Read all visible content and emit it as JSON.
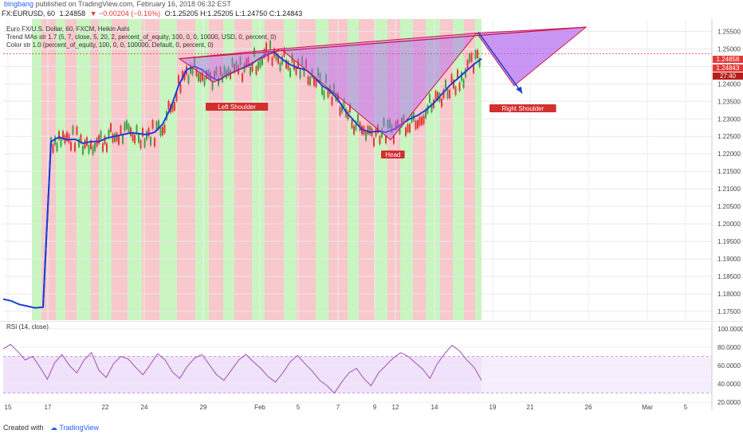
{
  "header": {
    "author": "bingbang",
    "published": "published on TradingView.com, February 16, 2018 06:32 EST"
  },
  "symbol": {
    "ticker": "FX:EURUSD, 60",
    "last": "1.24858",
    "change": "▼ −0.00204 (−0.16%)",
    "ohlc": "O:1.25205 H:1.25205 L:1.24750 C:1.24843"
  },
  "legend": {
    "line1": "Euro FX/U.S. Dollar, 60, FXCM, Heikin Ashi",
    "line2": "Trend MAs str 1.7 (5, 7, close, 5, 20, 2, percent_of_equity, 100, 0, 0, 10000, USD, 0, percent, 0)",
    "line3": "Color str 1.0 (percent_of_equity, 100, 0, 0, 100000, Default, 0, percent, 0)"
  },
  "price_boxes": {
    "last": "1.24858",
    "close": "1.24843",
    "timer": "27:40"
  },
  "annotations": {
    "left_shoulder": "Left Shoulder",
    "head": "Head",
    "right_shoulder": "Right Shoulder"
  },
  "rsi": {
    "title": "RSI (14, close)"
  },
  "footer": {
    "created": "Created with",
    "brand": "TradingView"
  },
  "colors": {
    "bull_band": "#c8f5c0",
    "bear_band": "#f8c8cc",
    "ma_line": "#1a3fd4",
    "pattern_fill": "#b36af0",
    "pattern_stroke": "#d0164a",
    "rsi_line": "#a050b8",
    "rsi_band": "#f0e2fa"
  },
  "chart_data": [
    {
      "type": "line",
      "title": "Euro FX/U.S. Dollar, 60, FXCM, Heikin Ashi",
      "x_tick_labels": [
        "15",
        "17",
        "22",
        "24",
        "29",
        "Feb",
        "5",
        "7",
        "9",
        "12",
        "14",
        "19",
        "21",
        "26",
        "Mar",
        "5"
      ],
      "y_ticks": [
        "1.25500",
        "1.25000",
        "1.24500",
        "1.24000",
        "1.23500",
        "1.23000",
        "1.22500",
        "1.22000",
        "1.21500",
        "1.21000",
        "1.20500",
        "1.20000",
        "1.19500",
        "1.19000",
        "1.18500",
        "1.18000",
        "1.17500"
      ],
      "ylim": [
        1.1725,
        1.2585
      ],
      "series": [
        {
          "name": "Trend MAs",
          "x": [
            0,
            1,
            2,
            3,
            4,
            5,
            6,
            7,
            8,
            9,
            10,
            11,
            12,
            13,
            14,
            15,
            16,
            17,
            18,
            19,
            20,
            21,
            22,
            23,
            24,
            25,
            26,
            27,
            28,
            29,
            30,
            31,
            32,
            33,
            34,
            35,
            36,
            37,
            38,
            39,
            40,
            41,
            42,
            43,
            44,
            45,
            46,
            47,
            48,
            49,
            50,
            51,
            52,
            53,
            54,
            55,
            56,
            57,
            58,
            59,
            60
          ],
          "values": [
            1.1785,
            1.178,
            1.177,
            1.1765,
            1.176,
            1.1762,
            1.2235,
            1.2248,
            1.224,
            1.2242,
            1.223,
            1.2235,
            1.2235,
            1.2245,
            1.225,
            1.2255,
            1.226,
            1.2258,
            1.2255,
            1.2262,
            1.2285,
            1.233,
            1.2395,
            1.244,
            1.245,
            1.244,
            1.242,
            1.241,
            1.2425,
            1.2435,
            1.2445,
            1.2455,
            1.247,
            1.2485,
            1.249,
            1.247,
            1.2455,
            1.2445,
            1.244,
            1.242,
            1.2395,
            1.238,
            1.2355,
            1.232,
            1.2295,
            1.227,
            1.2262,
            1.2265,
            1.2262,
            1.227,
            1.2285,
            1.23,
            1.231,
            1.2325,
            1.2345,
            1.237,
            1.2395,
            1.2415,
            1.2435,
            1.2455,
            1.2472
          ]
        }
      ],
      "pattern": {
        "name": "Head and Shoulders (inverse)",
        "labels": [
          "Left Shoulder",
          "Head",
          "Right Shoulder"
        ]
      }
    },
    {
      "type": "line",
      "title": "RSI (14, close)",
      "y_ticks": [
        "100.0000",
        "80.0000",
        "60.0000",
        "40.0000",
        "20.0000"
      ],
      "ylim": [
        15,
        105
      ],
      "band": [
        30,
        70
      ],
      "series": [
        {
          "name": "RSI",
          "values": [
            78,
            83,
            75,
            66,
            70,
            58,
            45,
            63,
            72,
            60,
            52,
            66,
            74,
            55,
            47,
            62,
            70,
            67,
            58,
            50,
            61,
            73,
            66,
            53,
            46,
            59,
            68,
            72,
            61,
            50,
            44,
            55,
            66,
            72,
            64,
            57,
            48,
            42,
            52,
            64,
            71,
            62,
            54,
            44,
            38,
            30,
            42,
            52,
            57,
            46,
            38,
            52,
            60,
            68,
            74,
            70,
            63,
            56,
            46,
            62,
            73,
            82,
            76,
            66,
            58,
            44
          ]
        }
      ]
    }
  ]
}
